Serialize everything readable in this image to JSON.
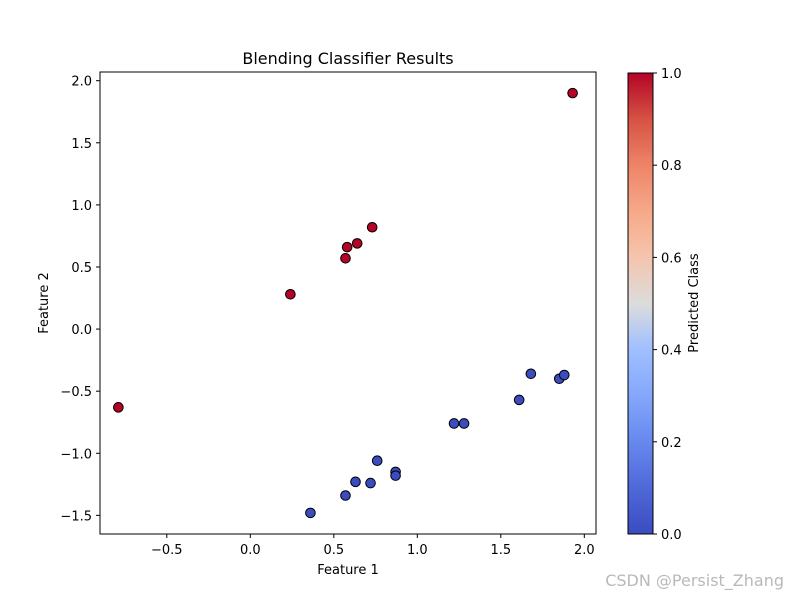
{
  "chart_data": {
    "type": "scatter",
    "title": "Blending Classifier Results",
    "xlabel": "Feature 1",
    "ylabel": "Feature 2",
    "xlim": [
      -0.9,
      2.07
    ],
    "ylim": [
      -1.65,
      2.07
    ],
    "xticks": [
      -0.5,
      0.0,
      0.5,
      1.0,
      1.5,
      2.0
    ],
    "xtick_labels": [
      "−0.5",
      "0.0",
      "0.5",
      "1.0",
      "1.5",
      "2.0"
    ],
    "yticks": [
      -1.5,
      -1.0,
      -0.5,
      0.0,
      0.5,
      1.0,
      1.5,
      2.0
    ],
    "ytick_labels": [
      "−1.5",
      "−1.0",
      "−0.5",
      "0.0",
      "0.5",
      "1.0",
      "1.5",
      "2.0"
    ],
    "grid": false,
    "points": [
      {
        "x": -0.79,
        "y": -0.63,
        "class": 1
      },
      {
        "x": 0.24,
        "y": 0.28,
        "class": 1
      },
      {
        "x": 0.57,
        "y": 0.57,
        "class": 1
      },
      {
        "x": 0.58,
        "y": 0.66,
        "class": 1
      },
      {
        "x": 0.64,
        "y": 0.69,
        "class": 1
      },
      {
        "x": 0.73,
        "y": 0.82,
        "class": 1
      },
      {
        "x": 1.93,
        "y": 1.9,
        "class": 1
      },
      {
        "x": 0.36,
        "y": -1.48,
        "class": 0
      },
      {
        "x": 0.57,
        "y": -1.34,
        "class": 0
      },
      {
        "x": 0.63,
        "y": -1.23,
        "class": 0
      },
      {
        "x": 0.72,
        "y": -1.24,
        "class": 0
      },
      {
        "x": 0.76,
        "y": -1.06,
        "class": 0
      },
      {
        "x": 0.87,
        "y": -1.15,
        "class": 0
      },
      {
        "x": 0.87,
        "y": -1.18,
        "class": 0
      },
      {
        "x": 1.22,
        "y": -0.76,
        "class": 0
      },
      {
        "x": 1.28,
        "y": -0.76,
        "class": 0
      },
      {
        "x": 1.61,
        "y": -0.57,
        "class": 0
      },
      {
        "x": 1.68,
        "y": -0.36,
        "class": 0
      },
      {
        "x": 1.85,
        "y": -0.4,
        "class": 0
      },
      {
        "x": 1.88,
        "y": -0.37,
        "class": 0
      }
    ],
    "colorbar": {
      "label": "Predicted Class",
      "min": 0.0,
      "max": 1.0,
      "ticks": [
        0.0,
        0.2,
        0.4,
        0.6,
        0.8,
        1.0
      ],
      "tick_labels": [
        "0.0",
        "0.2",
        "0.4",
        "0.6",
        "0.8",
        "1.0"
      ],
      "colormap": "coolwarm",
      "color_low": "#3b4cc0",
      "color_high": "#b40426"
    },
    "marker_edge_color": "#000000"
  },
  "watermark": "CSDN @Persist_Zhang"
}
